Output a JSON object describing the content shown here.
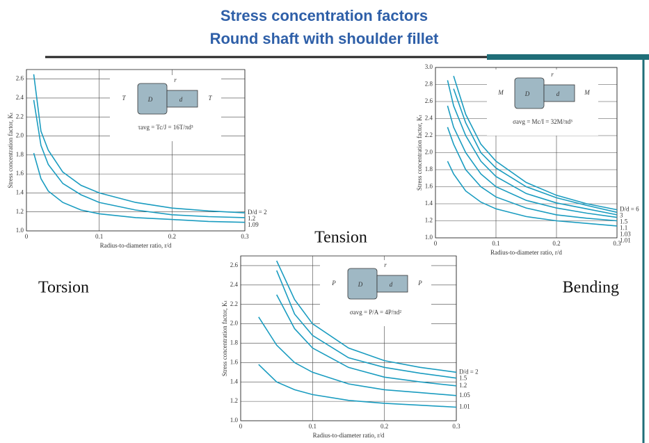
{
  "header": {
    "title_lines": [
      "Stress concentration factors",
      "Round shaft with shoulder fillet"
    ]
  },
  "chart_data": [
    {
      "type": "line",
      "title": "Torsion",
      "xlabel": "Radius-to-diameter ratio, r/d",
      "ylabel": "Stress concentration factor, Kₜ",
      "formula": "τavg = Tc/J = 16T/πd³",
      "inset_labels": [
        "T",
        "D",
        "d",
        "r",
        "T"
      ],
      "x": [
        0.01,
        0.02,
        0.03,
        0.05,
        0.075,
        0.1,
        0.15,
        0.2,
        0.25,
        0.3
      ],
      "series": [
        {
          "name": "D/d = 2",
          "color": "#1a9cc0",
          "values": [
            2.65,
            2.05,
            1.85,
            1.62,
            1.48,
            1.4,
            1.3,
            1.24,
            1.21,
            1.19
          ]
        },
        {
          "name": "1.2",
          "color": "#1a9cc0",
          "values": [
            2.38,
            1.9,
            1.7,
            1.5,
            1.38,
            1.3,
            1.22,
            1.17,
            1.15,
            1.14
          ]
        },
        {
          "name": "1.09",
          "color": "#1a9cc0",
          "values": [
            1.82,
            1.55,
            1.42,
            1.3,
            1.22,
            1.18,
            1.14,
            1.12,
            1.1,
            1.09
          ]
        }
      ],
      "xlim": [
        0,
        0.3
      ],
      "ylim": [
        1.0,
        2.7
      ],
      "xticks": [
        0,
        0.1,
        0.2,
        0.3
      ],
      "yticks": [
        {
          "value": 1,
          "label": "1.0"
        },
        1.2,
        1.4,
        1.6,
        1.8,
        {
          "value": 2,
          "label": "2.0"
        },
        2.2,
        2.4,
        2.6
      ],
      "grid": true
    },
    {
      "type": "line",
      "title": "Bending",
      "xlabel": "Radius-to-diameter ratio, r/d",
      "ylabel": "Stress concentration factor, Kₜ",
      "formula": "σavg = Mc/I = 32M/πd³",
      "inset_labels": [
        "M",
        "D",
        "d",
        "r",
        "M"
      ],
      "x": [
        0.02,
        0.03,
        0.05,
        0.075,
        0.1,
        0.15,
        0.2,
        0.25,
        0.3
      ],
      "series": [
        {
          "name": "D/d = 6",
          "color": "#1a9cc0",
          "values": [
            null,
            2.9,
            2.45,
            2.1,
            1.9,
            1.65,
            1.5,
            1.4,
            1.33
          ]
        },
        {
          "name": "3",
          "color": "#1a9cc0",
          "values": [
            null,
            2.75,
            2.35,
            2.0,
            1.82,
            1.6,
            1.47,
            1.38,
            1.3
          ]
        },
        {
          "name": "1.5",
          "color": "#1a9cc0",
          "values": [
            2.85,
            2.55,
            2.2,
            1.9,
            1.72,
            1.52,
            1.41,
            1.34,
            1.27
          ]
        },
        {
          "name": "1.1",
          "color": "#1a9cc0",
          "values": [
            2.55,
            2.3,
            2.0,
            1.75,
            1.6,
            1.44,
            1.35,
            1.29,
            1.24
          ]
        },
        {
          "name": "1.03",
          "color": "#1a9cc0",
          "values": [
            2.3,
            2.1,
            1.8,
            1.6,
            1.48,
            1.35,
            1.27,
            1.23,
            1.2
          ]
        },
        {
          "name": "1.01",
          "color": "#1a9cc0",
          "values": [
            1.9,
            1.75,
            1.55,
            1.42,
            1.34,
            1.25,
            1.2,
            1.17,
            1.14
          ]
        }
      ],
      "xlim": [
        0,
        0.3
      ],
      "ylim": [
        1.0,
        3.0
      ],
      "xticks": [
        0,
        0.1,
        0.2,
        0.3
      ],
      "yticks": [
        {
          "value": 1,
          "label": "1.0"
        },
        1.2,
        1.4,
        1.6,
        1.8,
        {
          "value": 2,
          "label": "2.0"
        },
        2.2,
        2.4,
        2.6,
        2.8,
        {
          "value": 3,
          "label": "3.0"
        }
      ],
      "grid": true
    },
    {
      "type": "line",
      "title": "Tension",
      "xlabel": "Radius-to-diameter ratio, r/d",
      "ylabel": "Stress concentration factor, Kₜ",
      "formula": "σavg = P/A = 4P/πd²",
      "inset_labels": [
        "P",
        "D",
        "d",
        "r",
        "P"
      ],
      "x": [
        0.025,
        0.05,
        0.075,
        0.1,
        0.15,
        0.2,
        0.25,
        0.3
      ],
      "series": [
        {
          "name": "D/d = 2",
          "color": "#1a9cc0",
          "values": [
            null,
            2.65,
            2.25,
            2.0,
            1.75,
            1.62,
            1.55,
            1.5
          ]
        },
        {
          "name": "1.5",
          "color": "#1a9cc0",
          "values": [
            null,
            2.55,
            2.1,
            1.88,
            1.65,
            1.55,
            1.49,
            1.44
          ]
        },
        {
          "name": "1.2",
          "color": "#1a9cc0",
          "values": [
            null,
            2.3,
            1.95,
            1.75,
            1.55,
            1.45,
            1.4,
            1.36
          ]
        },
        {
          "name": "1.05",
          "color": "#1a9cc0",
          "values": [
            2.07,
            1.78,
            1.6,
            1.5,
            1.38,
            1.32,
            1.29,
            1.26
          ]
        },
        {
          "name": "1.01",
          "color": "#1a9cc0",
          "values": [
            1.58,
            1.4,
            1.32,
            1.27,
            1.21,
            1.18,
            1.16,
            1.14
          ]
        }
      ],
      "xlim": [
        0,
        0.3
      ],
      "ylim": [
        1.0,
        2.7
      ],
      "xticks": [
        0,
        0.1,
        0.2,
        0.3
      ],
      "yticks": [
        {
          "value": 1,
          "label": "1.0"
        },
        1.2,
        1.4,
        1.6,
        1.8,
        {
          "value": 2,
          "label": "2.0"
        },
        2.2,
        2.4,
        2.6
      ],
      "grid": true
    }
  ]
}
